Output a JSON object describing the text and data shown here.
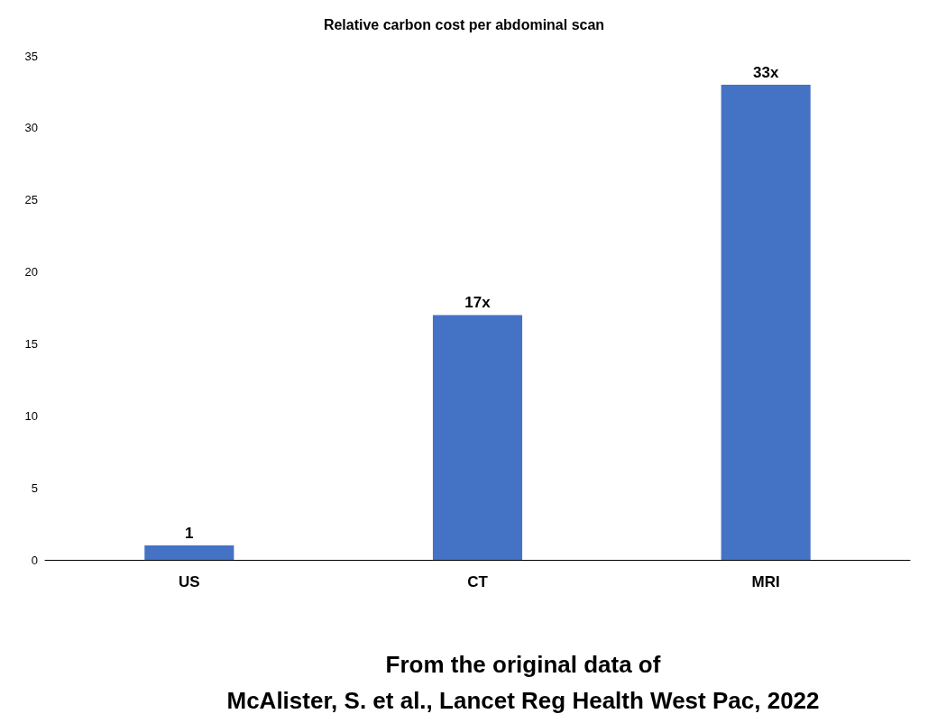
{
  "chart_data": {
    "type": "bar",
    "title": "Relative carbon cost per abdominal scan",
    "categories": [
      "US",
      "CT",
      "MRI"
    ],
    "values": [
      1,
      17,
      33
    ],
    "value_labels": [
      "1",
      "17x",
      "33x"
    ],
    "color": "#4472c4",
    "ylim": [
      0,
      35
    ],
    "yticks": [
      0,
      5,
      10,
      15,
      20,
      25,
      30,
      35
    ],
    "grid": false,
    "annotations": [
      "From the original data of\nMcAlister, S. et al., Lancet Reg Health West Pac, 2022"
    ]
  }
}
